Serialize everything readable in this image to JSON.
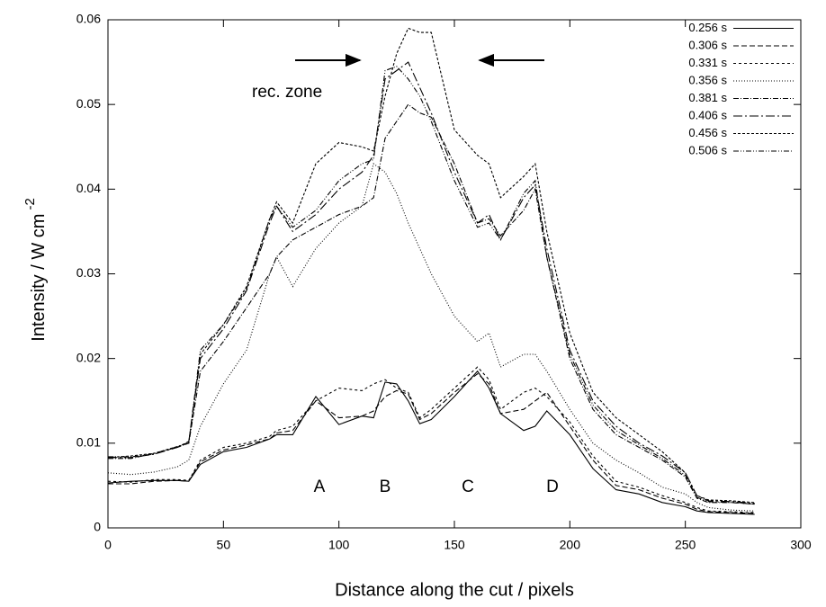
{
  "chart_data": {
    "type": "line",
    "x_label": "Distance along the cut / pixels",
    "y_label": "Intensity  / W cm",
    "y_label_superscript": "-2",
    "annotations": [
      "rec. zone",
      "A",
      "B",
      "C",
      "D"
    ],
    "xlim": [
      0,
      300
    ],
    "xticks": [
      0,
      50,
      100,
      150,
      200,
      250,
      300
    ],
    "ylim": [
      0,
      0.06
    ],
    "yticks": [
      0,
      0.01,
      0.02,
      0.03,
      0.04,
      0.05,
      0.06
    ],
    "grid": false,
    "legend": "top-right",
    "x": [
      0,
      10,
      20,
      30,
      35,
      40,
      50,
      60,
      70,
      73,
      80,
      90,
      100,
      110,
      115,
      120,
      125,
      130,
      135,
      140,
      150,
      160,
      165,
      170,
      180,
      185,
      190,
      200,
      210,
      220,
      230,
      240,
      250,
      255,
      260,
      270,
      280
    ],
    "series": [
      {
        "name": "0.256 s",
        "color": "#000000",
        "dash": "none",
        "values": [
          0.0053,
          0.0055,
          0.0056,
          0.0056,
          0.0055,
          0.0075,
          0.009,
          0.0095,
          0.0105,
          0.011,
          0.011,
          0.0155,
          0.0122,
          0.0132,
          0.013,
          0.0172,
          0.017,
          0.015,
          0.0123,
          0.0128,
          0.0155,
          0.0185,
          0.0165,
          0.0135,
          0.0115,
          0.012,
          0.0138,
          0.011,
          0.007,
          0.0045,
          0.004,
          0.003,
          0.0025,
          0.002,
          0.0018,
          0.0017,
          0.0016
        ]
      },
      {
        "name": "0.306 s",
        "color": "#000000",
        "dash": "6,3",
        "values": [
          0.0052,
          0.0052,
          0.0055,
          0.0056,
          0.0055,
          0.0078,
          0.0092,
          0.0098,
          0.0105,
          0.0112,
          0.0115,
          0.015,
          0.013,
          0.0132,
          0.0138,
          0.0155,
          0.0162,
          0.0158,
          0.0128,
          0.0135,
          0.016,
          0.0182,
          0.017,
          0.0135,
          0.014,
          0.015,
          0.016,
          0.012,
          0.008,
          0.005,
          0.0045,
          0.0035,
          0.0028,
          0.0022,
          0.0019,
          0.0018,
          0.0017
        ]
      },
      {
        "name": "0.331 s",
        "color": "#000000",
        "dash": "3,3",
        "values": [
          0.0055,
          0.0054,
          0.0057,
          0.0057,
          0.0056,
          0.008,
          0.0095,
          0.01,
          0.0108,
          0.0115,
          0.012,
          0.015,
          0.0165,
          0.0162,
          0.017,
          0.0175,
          0.0165,
          0.016,
          0.013,
          0.014,
          0.0165,
          0.019,
          0.0175,
          0.014,
          0.016,
          0.0165,
          0.0155,
          0.0125,
          0.0085,
          0.0055,
          0.0048,
          0.0038,
          0.003,
          0.0024,
          0.002,
          0.0019,
          0.0018
        ]
      },
      {
        "name": "0.356 s",
        "color": "#000000",
        "dash": "1,2",
        "values": [
          0.0065,
          0.0063,
          0.0066,
          0.0072,
          0.008,
          0.012,
          0.017,
          0.021,
          0.03,
          0.032,
          0.0285,
          0.033,
          0.036,
          0.038,
          0.043,
          0.042,
          0.0395,
          0.036,
          0.033,
          0.03,
          0.025,
          0.022,
          0.023,
          0.019,
          0.0205,
          0.0205,
          0.0185,
          0.014,
          0.01,
          0.008,
          0.0065,
          0.0048,
          0.004,
          0.003,
          0.0024,
          0.0021,
          0.002
        ]
      },
      {
        "name": "0.381 s",
        "color": "#000000",
        "dash": "6,2,1,2",
        "values": [
          0.0082,
          0.0082,
          0.0088,
          0.0095,
          0.01,
          0.0185,
          0.022,
          0.026,
          0.03,
          0.032,
          0.034,
          0.0355,
          0.037,
          0.038,
          0.039,
          0.046,
          0.048,
          0.05,
          0.049,
          0.0485,
          0.043,
          0.036,
          0.0365,
          0.0345,
          0.0375,
          0.04,
          0.032,
          0.02,
          0.014,
          0.011,
          0.0095,
          0.008,
          0.006,
          0.0035,
          0.003,
          0.003,
          0.0028
        ]
      },
      {
        "name": "0.406 s",
        "color": "#000000",
        "dash": "10,3,2,3",
        "values": [
          0.0083,
          0.0083,
          0.0087,
          0.0095,
          0.0102,
          0.02,
          0.0235,
          0.028,
          0.036,
          0.038,
          0.035,
          0.037,
          0.04,
          0.042,
          0.044,
          0.053,
          0.054,
          0.055,
          0.052,
          0.049,
          0.042,
          0.036,
          0.037,
          0.034,
          0.039,
          0.0405,
          0.033,
          0.021,
          0.015,
          0.012,
          0.01,
          0.0085,
          0.0065,
          0.0038,
          0.0032,
          0.0031,
          0.0029
        ]
      },
      {
        "name": "0.456 s",
        "color": "#000000",
        "dash": "3,2",
        "values": [
          0.0083,
          0.0085,
          0.0088,
          0.0096,
          0.01,
          0.0205,
          0.024,
          0.0285,
          0.0365,
          0.0385,
          0.036,
          0.043,
          0.0455,
          0.045,
          0.0445,
          0.051,
          0.056,
          0.059,
          0.0585,
          0.0585,
          0.047,
          0.044,
          0.043,
          0.039,
          0.0415,
          0.043,
          0.035,
          0.023,
          0.016,
          0.013,
          0.011,
          0.009,
          0.0065,
          0.0038,
          0.0033,
          0.0032,
          0.003
        ]
      },
      {
        "name": "0.506 s",
        "color": "#000000",
        "dash": "6,2,1,2,1,2",
        "values": [
          0.0084,
          0.0084,
          0.0087,
          0.0096,
          0.0101,
          0.021,
          0.024,
          0.0282,
          0.0365,
          0.038,
          0.0355,
          0.0375,
          0.041,
          0.043,
          0.0435,
          0.054,
          0.0545,
          0.053,
          0.051,
          0.048,
          0.041,
          0.0355,
          0.036,
          0.034,
          0.0395,
          0.041,
          0.032,
          0.0205,
          0.0145,
          0.0115,
          0.0098,
          0.0082,
          0.0062,
          0.0036,
          0.0031,
          0.003,
          0.0028
        ]
      }
    ]
  }
}
